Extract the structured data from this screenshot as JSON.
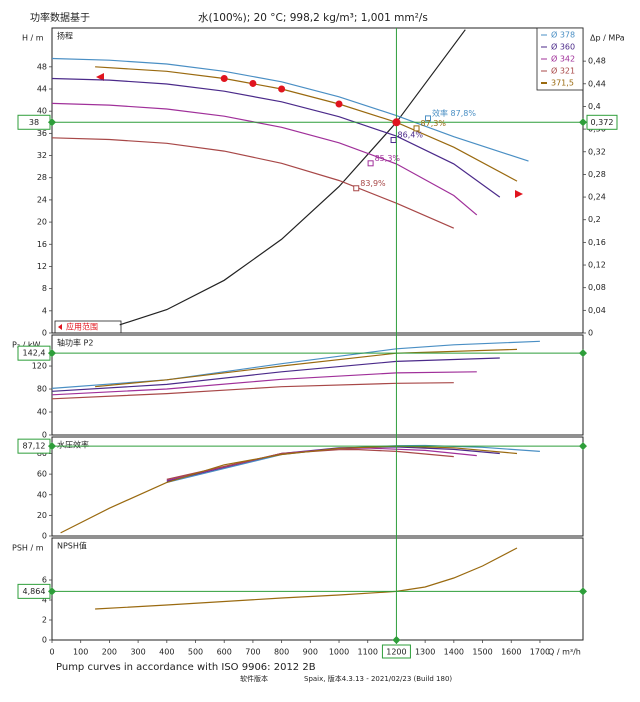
{
  "header": {
    "left": "功率数据基于",
    "conditions": "水(100%); 20 °C; 998,2 kg/m³; 1,001 mm²/s"
  },
  "footer": {
    "standard": "Pump curves in accordance with ISO 9906: 2012 2B",
    "software_label": "软件版本",
    "version": "Spaix, 版本4.3.13 - 2021/02/23 (Build 180)"
  },
  "chart_data": [
    {
      "type": "line",
      "panel_label": "扬程",
      "ylabel": "H / m",
      "y2label": "Δp / MPa",
      "range_label": "应用范围",
      "xlim": [
        0,
        1850
      ],
      "ylim": [
        0,
        55
      ],
      "yticks": [
        0,
        4,
        8,
        12,
        16,
        20,
        24,
        28,
        32,
        36,
        40,
        44,
        48
      ],
      "y2lim": [
        0,
        0.5385
      ],
      "y2ticks": [
        0,
        {
          "value": 0.04,
          "label": "0,04"
        },
        {
          "value": 0.08,
          "label": "0,08"
        },
        {
          "value": 0.12,
          "label": "0,12"
        },
        {
          "value": 0.16,
          "label": "0,16"
        },
        {
          "value": 0.2,
          "label": "0,2"
        },
        {
          "value": 0.24,
          "label": "0,24"
        },
        {
          "value": 0.28,
          "label": "0,28"
        },
        {
          "value": 0.32,
          "label": "0,32"
        },
        {
          "value": 0.36,
          "label": "0,36"
        },
        {
          "value": 0.4,
          "label": "0,4"
        },
        {
          "value": 0.44,
          "label": "0,44"
        },
        {
          "value": 0.48,
          "label": "0,48"
        }
      ],
      "highlight": 38,
      "highlight_y2": {
        "value": 0.372,
        "label": "0,372"
      },
      "series": [
        {
          "name": "Ø 378",
          "color": "#4a8fc4",
          "x": [
            0,
            200,
            400,
            600,
            800,
            1000,
            1200,
            1400,
            1660
          ],
          "values": [
            49.5,
            49.2,
            48.5,
            47.2,
            45.3,
            42.6,
            39.2,
            35.4,
            31
          ]
        },
        {
          "name": "Ø 360",
          "color": "#4b2a8a",
          "x": [
            0,
            200,
            400,
            600,
            800,
            1000,
            1200,
            1400,
            1560
          ],
          "values": [
            45.9,
            45.6,
            44.9,
            43.6,
            41.7,
            39,
            35.5,
            30.5,
            24.5
          ]
        },
        {
          "name": "Ø 342",
          "color": "#a0309a",
          "x": [
            0,
            200,
            400,
            600,
            800,
            1000,
            1200,
            1400,
            1480
          ],
          "values": [
            41.4,
            41.1,
            40.4,
            39.1,
            37.1,
            34.3,
            30.5,
            24.8,
            21.3
          ]
        },
        {
          "name": "Ø 321",
          "color": "#a84848",
          "x": [
            0,
            200,
            400,
            600,
            800,
            1000,
            1200,
            1400
          ],
          "values": [
            35.2,
            34.9,
            34.2,
            32.8,
            30.6,
            27.5,
            23.4,
            18.9
          ]
        },
        {
          "name": "371,5",
          "color": "#9a6a10",
          "x": [
            150,
            400,
            600,
            800,
            1000,
            1200,
            1400,
            1620
          ],
          "values": [
            48,
            47.2,
            45.9,
            44,
            41.3,
            38,
            33.5,
            27.4
          ]
        }
      ],
      "system_curve": {
        "color": "#222222",
        "x": [
          236,
          400,
          600,
          800,
          1000,
          1200,
          1440
        ],
        "values": [
          1.47,
          4.22,
          9.5,
          16.9,
          26.4,
          38,
          54.7
        ]
      },
      "duty_points": {
        "color": "#e0141e",
        "x": [
          600,
          700,
          800,
          1000
        ],
        "values": [
          45.9,
          45,
          44,
          41.3
        ]
      },
      "annotations": [
        {
          "text": "效率 87,8%",
          "x": 1310,
          "y": 38.7,
          "color": "#4a8fc4"
        },
        {
          "text": "87,3%",
          "x": 1270,
          "y": 36.9,
          "color": "#9a6a10"
        },
        {
          "text": "86,4%",
          "x": 1190,
          "y": 34.8,
          "color": "#4b2a8a"
        },
        {
          "text": "85,3%",
          "x": 1110,
          "y": 30.6,
          "color": "#a0309a"
        },
        {
          "text": "83,9%",
          "x": 1060,
          "y": 26.1,
          "color": "#a84848"
        }
      ]
    },
    {
      "type": "line",
      "panel_label": "轴功率 P2",
      "ylabel": "P₂ / kW",
      "xlim": [
        0,
        1850
      ],
      "ylim": [
        0,
        174
      ],
      "yticks": [
        0,
        40,
        80,
        120
      ],
      "highlight": {
        "value": 142.4,
        "label": "142,4"
      },
      "series": [
        {
          "color": "#4a8fc4",
          "x": [
            0,
            400,
            800,
            1200,
            1400,
            1700
          ],
          "values": [
            81,
            96,
            124,
            150,
            157,
            163
          ]
        },
        {
          "color": "#4b2a8a",
          "x": [
            0,
            400,
            800,
            1200,
            1560
          ],
          "values": [
            76,
            88,
            110,
            128,
            134
          ]
        },
        {
          "color": "#a0309a",
          "x": [
            0,
            400,
            800,
            1200,
            1480
          ],
          "values": [
            70,
            80,
            97,
            108,
            110
          ]
        },
        {
          "color": "#a84848",
          "x": [
            0,
            400,
            800,
            1200,
            1400
          ],
          "values": [
            63,
            72,
            84,
            90,
            91
          ]
        },
        {
          "color": "#9a6a10",
          "x": [
            150,
            400,
            800,
            1200,
            1620
          ],
          "values": [
            84,
            96,
            120,
            142.4,
            149
          ]
        }
      ]
    },
    {
      "type": "line",
      "panel_label": "水压效率",
      "xlim": [
        0,
        1850
      ],
      "ylim": [
        0,
        96
      ],
      "yticks": [
        0,
        20,
        40,
        60,
        80
      ],
      "highlight": {
        "value": 87.12,
        "label": "87,12"
      },
      "series": [
        {
          "color": "#4a8fc4",
          "x": [
            400,
            800,
            1000,
            1200,
            1300,
            1500,
            1700
          ],
          "values": [
            52,
            79,
            85,
            87.6,
            87.8,
            86,
            82
          ]
        },
        {
          "color": "#4b2a8a",
          "x": [
            400,
            800,
            1000,
            1200,
            1400,
            1560
          ],
          "values": [
            53,
            80,
            85.5,
            86.4,
            84,
            80
          ]
        },
        {
          "color": "#a0309a",
          "x": [
            400,
            800,
            1000,
            1100,
            1300,
            1480
          ],
          "values": [
            54,
            80,
            84.8,
            85.3,
            83,
            78
          ]
        },
        {
          "color": "#a84848",
          "x": [
            400,
            800,
            1000,
            1060,
            1200,
            1400
          ],
          "values": [
            55,
            80,
            83.7,
            83.9,
            82,
            77
          ]
        },
        {
          "color": "#9a6a10",
          "x": [
            30,
            200,
            400,
            600,
            800,
            1000,
            1200,
            1400,
            1620
          ],
          "values": [
            3,
            27,
            52,
            69,
            79,
            85,
            87.12,
            85.5,
            80
          ]
        }
      ]
    },
    {
      "type": "line",
      "panel_label": "NPSH值",
      "ylabel": "PSH / m",
      "xlabel": "Q / m³/h",
      "xlim": [
        0,
        1850
      ],
      "ylim": [
        0,
        10.2
      ],
      "yticks": [
        0,
        2,
        4,
        6
      ],
      "xticks": [
        0,
        100,
        200,
        300,
        400,
        500,
        600,
        700,
        800,
        900,
        1000,
        1100,
        1300,
        1400,
        1500,
        1600,
        1700
      ],
      "highlight": {
        "value": 4.864,
        "label": "4,864"
      },
      "x_highlight": 1200,
      "series": [
        {
          "color": "#9a6a10",
          "x": [
            150,
            400,
            800,
            1000,
            1200,
            1300,
            1400,
            1500,
            1620
          ],
          "values": [
            3.1,
            3.5,
            4.2,
            4.5,
            4.864,
            5.3,
            6.2,
            7.4,
            9.2
          ]
        }
      ]
    }
  ]
}
